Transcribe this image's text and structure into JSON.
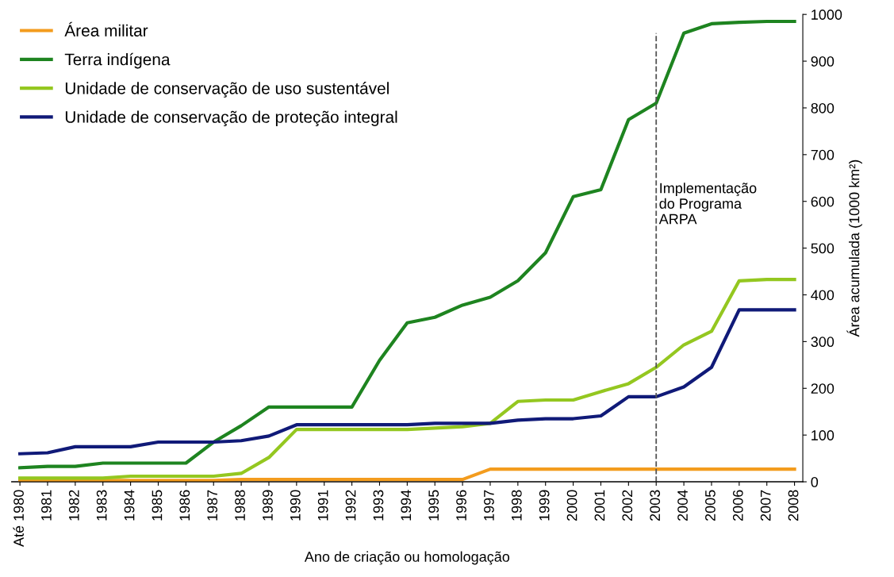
{
  "chart_data": {
    "type": "line",
    "xlabel": "Ano de criação ou homologação",
    "y2label": "Área acumulada (1000 km²)",
    "categories": [
      "Até 1980",
      "1981",
      "1982",
      "1983",
      "1984",
      "1985",
      "1986",
      "1987",
      "1988",
      "1989",
      "1990",
      "1991",
      "1992",
      "1993",
      "1994",
      "1995",
      "1996",
      "1997",
      "1998",
      "1999",
      "2000",
      "2001",
      "2002",
      "2003",
      "2004",
      "2005",
      "2006",
      "2007",
      "2008"
    ],
    "series": [
      {
        "name": "Área militar",
        "color": "#f39c1e",
        "axis": "y2",
        "values": [
          3,
          3,
          3,
          3,
          3,
          3,
          3,
          3,
          5,
          5,
          5,
          5,
          5,
          5,
          5,
          5,
          5,
          27,
          27,
          27,
          27,
          27,
          27,
          27,
          27,
          27,
          27,
          27,
          27
        ]
      },
      {
        "name": "Terra indígena",
        "color": "#1e8420",
        "axis": "y2",
        "values": [
          30,
          33,
          33,
          40,
          40,
          40,
          40,
          85,
          120,
          160,
          160,
          160,
          160,
          260,
          340,
          352,
          378,
          395,
          430,
          490,
          610,
          625,
          775,
          810,
          960,
          980,
          983,
          985,
          985
        ]
      },
      {
        "name": "Unidade de conservação de uso sustentável",
        "color": "#94c720",
        "axis": "y2",
        "values": [
          8,
          8,
          8,
          8,
          12,
          12,
          12,
          12,
          18,
          52,
          112,
          112,
          112,
          112,
          112,
          115,
          118,
          125,
          172,
          175,
          175,
          193,
          210,
          245,
          293,
          322,
          430,
          433,
          433
        ]
      },
      {
        "name": "Unidade de conservação de proteção integral",
        "color": "#101a78",
        "axis": "y2",
        "values": [
          60,
          62,
          75,
          75,
          75,
          85,
          85,
          85,
          88,
          98,
          122,
          122,
          122,
          122,
          122,
          125,
          125,
          125,
          132,
          135,
          135,
          141,
          182,
          182,
          203,
          245,
          368,
          368,
          368
        ]
      }
    ],
    "y2lim": [
      0,
      1000
    ],
    "y2ticks": [
      0,
      100,
      200,
      300,
      400,
      500,
      600,
      700,
      800,
      900,
      1000
    ],
    "ref_lines": [
      {
        "axis": "x",
        "value": "2003",
        "label": "Implementação\ndo Programa\nARPA",
        "color": "#555555",
        "line_style": "dashed"
      }
    ],
    "legend": "top left",
    "grid": false,
    "marker": "none",
    "line_style": "solid"
  }
}
